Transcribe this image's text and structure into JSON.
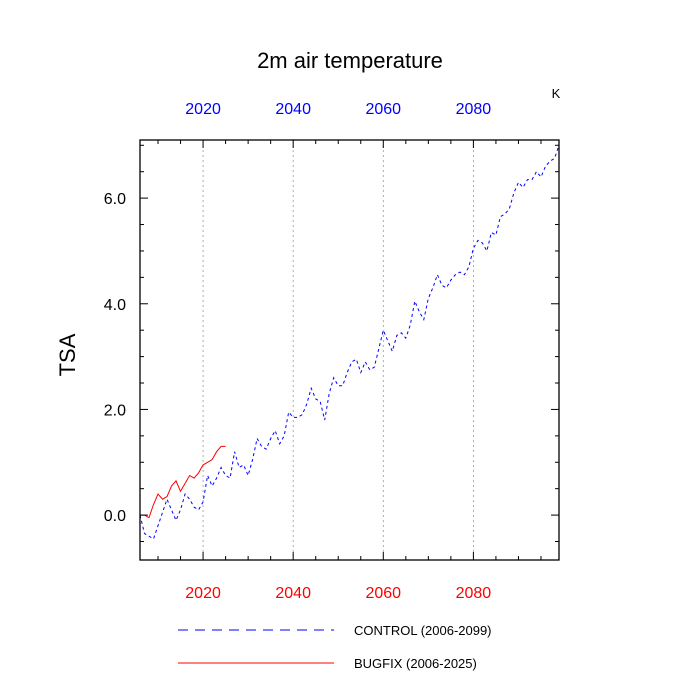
{
  "chart_data": {
    "type": "line",
    "title": "2m air temperature",
    "units": "K",
    "ylabel": "TSA",
    "xlim": [
      2006,
      2099
    ],
    "ylim": [
      -0.85,
      7.1
    ],
    "yticks": [
      0,
      2,
      4,
      6
    ],
    "ytick_labels": [
      "0.0",
      "2.0",
      "4.0",
      "6.0"
    ],
    "xticks": [
      2020,
      2040,
      2060,
      2080
    ],
    "xtick_labels_bottom": [
      "2020",
      "2040",
      "2060",
      "2080"
    ],
    "xtick_labels_top": [
      "2020",
      "2040",
      "2060",
      "2080"
    ],
    "grid_x": true,
    "series": [
      {
        "name": "CONTROL (2006-2099)",
        "color": "#0000ff",
        "dash": "dashed",
        "x": [
          2006,
          2007,
          2008,
          2009,
          2010,
          2011,
          2012,
          2013,
          2014,
          2015,
          2016,
          2017,
          2018,
          2019,
          2020,
          2021,
          2022,
          2023,
          2024,
          2025,
          2026,
          2027,
          2028,
          2029,
          2030,
          2031,
          2032,
          2033,
          2034,
          2035,
          2036,
          2037,
          2038,
          2039,
          2040,
          2041,
          2042,
          2043,
          2044,
          2045,
          2046,
          2047,
          2048,
          2049,
          2050,
          2051,
          2052,
          2053,
          2054,
          2055,
          2056,
          2057,
          2058,
          2059,
          2060,
          2061,
          2062,
          2063,
          2064,
          2065,
          2066,
          2067,
          2068,
          2069,
          2070,
          2071,
          2072,
          2073,
          2074,
          2075,
          2076,
          2077,
          2078,
          2079,
          2080,
          2081,
          2082,
          2083,
          2084,
          2085,
          2086,
          2087,
          2088,
          2089,
          2090,
          2091,
          2092,
          2093,
          2094,
          2095,
          2096,
          2097,
          2098,
          2099
        ],
        "values": [
          0.0,
          -0.35,
          -0.4,
          -0.45,
          -0.2,
          0.05,
          0.3,
          0.1,
          -0.1,
          0.1,
          0.4,
          0.3,
          0.15,
          0.1,
          0.25,
          0.75,
          0.55,
          0.7,
          0.9,
          0.75,
          0.7,
          1.2,
          0.9,
          0.95,
          0.75,
          1.05,
          1.45,
          1.3,
          1.25,
          1.45,
          1.6,
          1.35,
          1.5,
          1.95,
          1.85,
          1.85,
          1.9,
          2.1,
          2.4,
          2.2,
          2.15,
          1.8,
          2.3,
          2.6,
          2.45,
          2.45,
          2.7,
          2.9,
          2.95,
          2.7,
          2.9,
          2.75,
          2.8,
          3.15,
          3.5,
          3.3,
          3.1,
          3.4,
          3.45,
          3.35,
          3.6,
          4.05,
          3.85,
          3.7,
          4.1,
          4.3,
          4.55,
          4.35,
          4.3,
          4.45,
          4.55,
          4.6,
          4.55,
          4.7,
          5.05,
          5.2,
          5.15,
          5.0,
          5.35,
          5.3,
          5.65,
          5.7,
          5.8,
          6.1,
          6.3,
          6.2,
          6.35,
          6.35,
          6.5,
          6.4,
          6.6,
          6.7,
          6.75,
          7.0
        ]
      },
      {
        "name": "BUGFIX (2006-2025)",
        "color": "#ff0000",
        "dash": "solid",
        "x": [
          2006,
          2007,
          2008,
          2009,
          2010,
          2011,
          2012,
          2013,
          2014,
          2015,
          2016,
          2017,
          2018,
          2019,
          2020,
          2021,
          2022,
          2023,
          2024,
          2025
        ],
        "values": [
          0.0,
          0.0,
          -0.05,
          0.2,
          0.4,
          0.3,
          0.35,
          0.55,
          0.65,
          0.45,
          0.6,
          0.75,
          0.7,
          0.8,
          0.95,
          1.0,
          1.05,
          1.2,
          1.3,
          1.3
        ]
      }
    ]
  }
}
